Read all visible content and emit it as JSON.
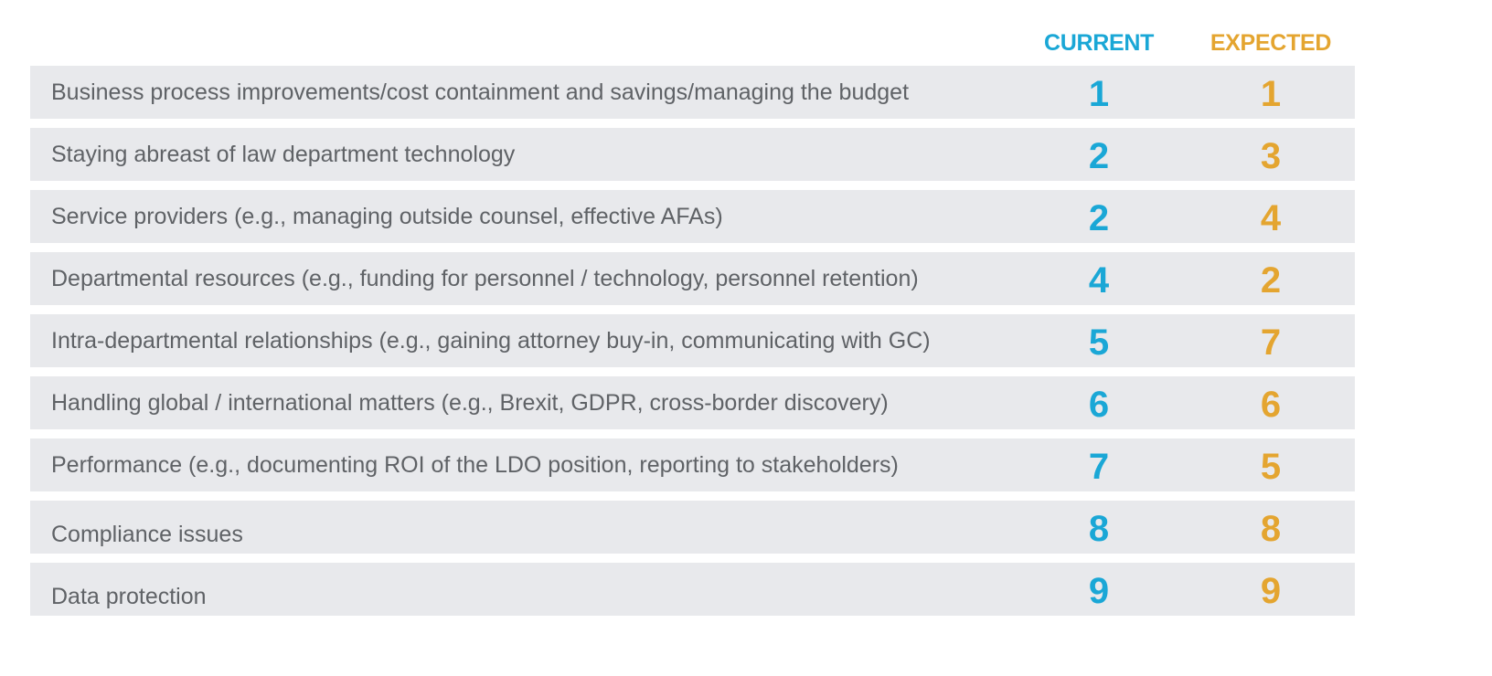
{
  "chart_data": {
    "type": "table",
    "columns": [
      "CURRENT",
      "EXPECTED"
    ],
    "colors": {
      "current": "#1aa7d6",
      "expected": "#e4a530",
      "row_background": "#e8e9ec",
      "label_text": "#5f6266"
    },
    "rows": [
      {
        "label": "Business process improvements/cost containment and savings/managing the budget",
        "current": 1,
        "expected": 1
      },
      {
        "label": "Staying abreast of law department technology",
        "current": 2,
        "expected": 3
      },
      {
        "label": "Service providers (e.g., managing outside counsel, effective AFAs)",
        "current": 2,
        "expected": 4
      },
      {
        "label": "Departmental resources (e.g., funding for personnel / technology, personnel retention)",
        "current": 4,
        "expected": 2
      },
      {
        "label": "Intra-departmental relationships (e.g., gaining attorney buy-in, communicating with GC)",
        "current": 5,
        "expected": 7
      },
      {
        "label": "Handling global / international matters (e.g., Brexit, GDPR, cross-border discovery)",
        "current": 6,
        "expected": 6
      },
      {
        "label": "Performance (e.g., documenting ROI of the LDO position, reporting to stakeholders)",
        "current": 7,
        "expected": 5
      },
      {
        "label": "Compliance issues",
        "current": 8,
        "expected": 8
      },
      {
        "label": "Data protection",
        "current": 9,
        "expected": 9
      }
    ]
  }
}
